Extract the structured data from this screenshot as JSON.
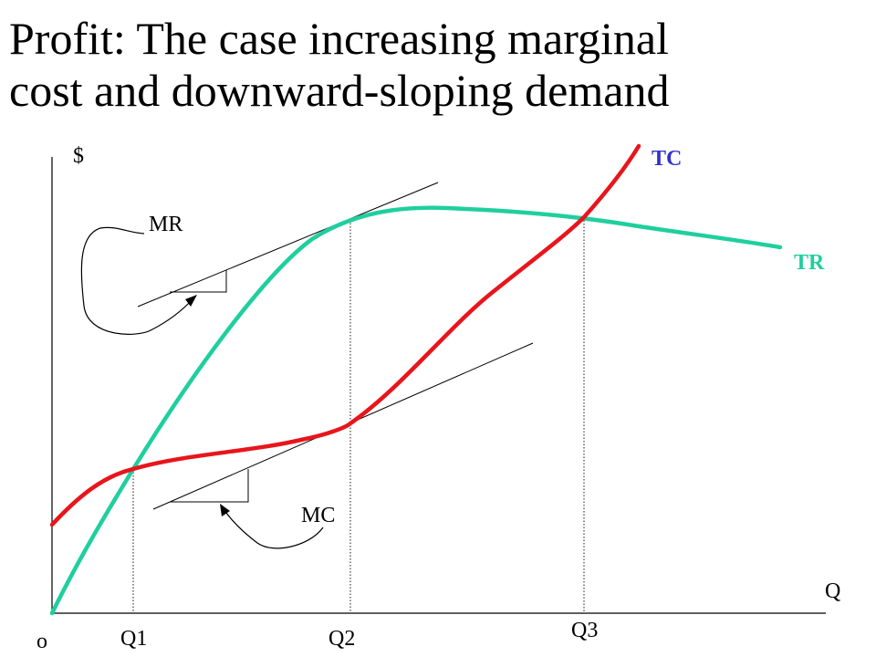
{
  "title": {
    "line1": "Profit: The case increasing marginal",
    "line2": "cost and downward-sloping demand"
  },
  "axes": {
    "y_label": "$",
    "x_label": "Q",
    "origin_label": "o"
  },
  "quantities": [
    "Q1",
    "Q2",
    "Q3"
  ],
  "curves": {
    "tc": {
      "label": "TC",
      "color": "#e8151c",
      "label_color": "#3333cc"
    },
    "tr": {
      "label": "TR",
      "color": "#1fcf9e",
      "label_color": "#1fcf9e"
    }
  },
  "annotations": {
    "mr": "MR",
    "mc": "MC"
  }
}
